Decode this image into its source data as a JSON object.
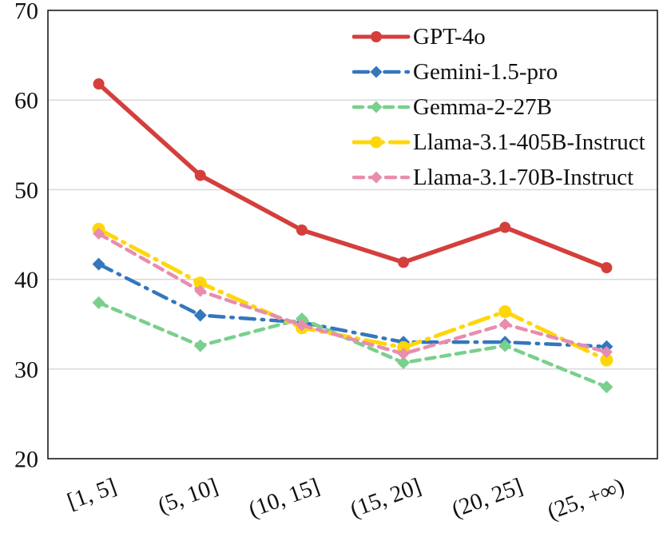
{
  "chart_data": {
    "type": "line",
    "title": "",
    "xlabel": "",
    "ylabel": "",
    "categories": [
      "[1, 5]",
      "(5, 10]",
      "(10, 15]",
      "(15, 20]",
      "(20, 25]",
      "(25, +∞)"
    ],
    "series": [
      {
        "name": "GPT-4o",
        "color": "#d43f3c",
        "dasharray": "",
        "marker": "circle",
        "marker_size": 7,
        "line_width": 5.5,
        "values": [
          61.8,
          51.6,
          45.5,
          41.9,
          45.8,
          41.3
        ]
      },
      {
        "name": "Gemini-1.5-pro",
        "color": "#3377bd",
        "dasharray": "18 9 2.5 9",
        "marker": "diamond",
        "marker_size": 8,
        "line_width": 4.5,
        "values": [
          41.7,
          36.0,
          35.2,
          33.0,
          33.0,
          32.5
        ]
      },
      {
        "name": "Gemma-2-27B",
        "color": "#79d08d",
        "dasharray": "11 8",
        "marker": "diamond",
        "marker_size": 8,
        "line_width": 4.5,
        "values": [
          37.4,
          32.6,
          35.6,
          30.7,
          32.6,
          28.0
        ]
      },
      {
        "name": "Llama-3.1-405B-Instruct",
        "color": "#ffd60a",
        "dasharray": "25 9 2.5 9",
        "marker": "circle",
        "marker_size": 8,
        "line_width": 5,
        "values": [
          45.6,
          39.6,
          34.6,
          32.4,
          36.4,
          31.0
        ]
      },
      {
        "name": "Llama-3.1-70B-Instruct",
        "color": "#e88daf",
        "dasharray": "12 8",
        "marker": "diamond",
        "marker_size": 7.5,
        "line_width": 4.5,
        "values": [
          45.1,
          38.7,
          34.9,
          31.7,
          35.0,
          31.9
        ]
      }
    ],
    "ylim": [
      20,
      70
    ],
    "yticks": [
      20,
      30,
      40,
      50,
      60,
      70
    ],
    "grid": "horizontal",
    "gridline_color": "#d9d9d9",
    "axis_color": "#1a1a1a",
    "legend_position": "top-right-inside"
  }
}
